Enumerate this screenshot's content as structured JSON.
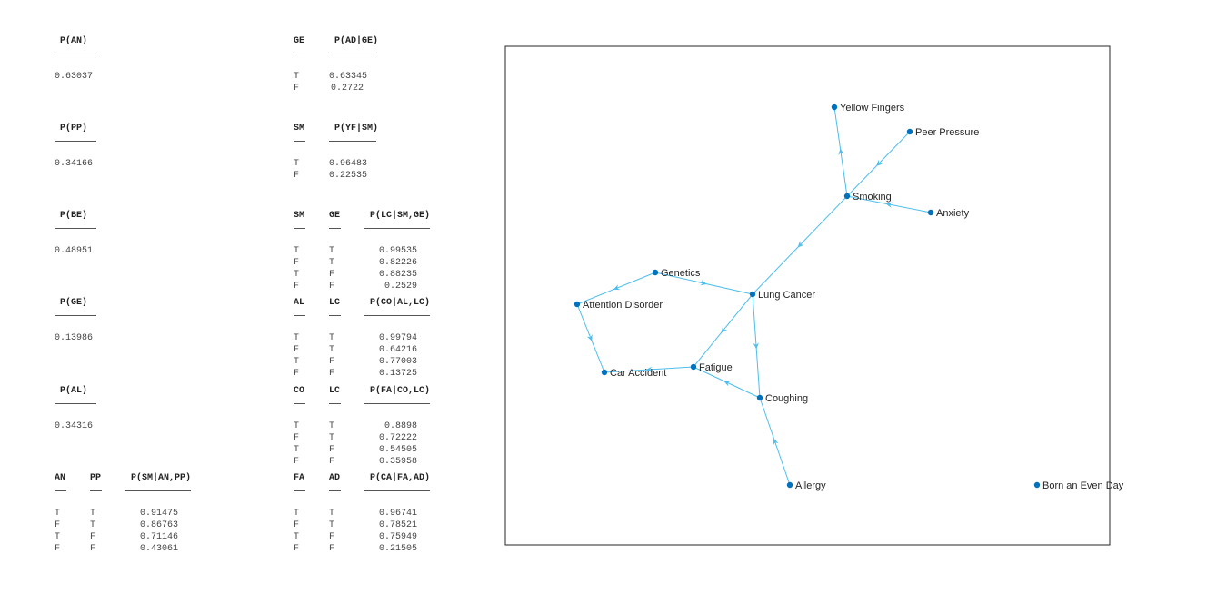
{
  "tables": [
    {
      "id": "t-an",
      "headers": [
        "P(AN)"
      ],
      "rows": [
        [
          "0.63037"
        ]
      ]
    },
    {
      "id": "t-adge",
      "headers": [
        "GE",
        "P(AD|GE)"
      ],
      "rows": [
        [
          "T",
          "0.63345"
        ],
        [
          "F",
          "0.2722"
        ]
      ]
    },
    {
      "id": "t-pp",
      "headers": [
        "P(PP)"
      ],
      "rows": [
        [
          "0.34166"
        ]
      ]
    },
    {
      "id": "t-yfsm",
      "headers": [
        "SM",
        "P(YF|SM)"
      ],
      "rows": [
        [
          "T",
          "0.96483"
        ],
        [
          "F",
          "0.22535"
        ]
      ]
    },
    {
      "id": "t-be",
      "headers": [
        "P(BE)"
      ],
      "rows": [
        [
          "0.48951"
        ]
      ]
    },
    {
      "id": "t-lc",
      "headers": [
        "SM",
        "GE",
        "P(LC|SM,GE)"
      ],
      "rows": [
        [
          "T",
          "T",
          "0.99535"
        ],
        [
          "F",
          "T",
          "0.82226"
        ],
        [
          "T",
          "F",
          "0.88235"
        ],
        [
          "F",
          "F",
          "0.2529"
        ]
      ]
    },
    {
      "id": "t-ge",
      "headers": [
        "P(GE)"
      ],
      "rows": [
        [
          "0.13986"
        ]
      ]
    },
    {
      "id": "t-co",
      "headers": [
        "AL",
        "LC",
        "P(CO|AL,LC)"
      ],
      "rows": [
        [
          "T",
          "T",
          "0.99794"
        ],
        [
          "F",
          "T",
          "0.64216"
        ],
        [
          "T",
          "F",
          "0.77003"
        ],
        [
          "F",
          "F",
          "0.13725"
        ]
      ]
    },
    {
      "id": "t-al",
      "headers": [
        "P(AL)"
      ],
      "rows": [
        [
          "0.34316"
        ]
      ]
    },
    {
      "id": "t-fa",
      "headers": [
        "CO",
        "LC",
        "P(FA|CO,LC)"
      ],
      "rows": [
        [
          "T",
          "T",
          "0.8898"
        ],
        [
          "F",
          "T",
          "0.72222"
        ],
        [
          "T",
          "F",
          "0.54505"
        ],
        [
          "F",
          "F",
          "0.35958"
        ]
      ]
    },
    {
      "id": "t-sm",
      "headers": [
        "AN",
        "PP",
        "P(SM|AN,PP)"
      ],
      "rows": [
        [
          "T",
          "T",
          "0.91475"
        ],
        [
          "F",
          "T",
          "0.86763"
        ],
        [
          "T",
          "F",
          "0.71146"
        ],
        [
          "F",
          "F",
          "0.43061"
        ]
      ]
    },
    {
      "id": "t-ca",
      "headers": [
        "FA",
        "AD",
        "P(CA|FA,AD)"
      ],
      "rows": [
        [
          "T",
          "T",
          "0.96741"
        ],
        [
          "F",
          "T",
          "0.78521"
        ],
        [
          "T",
          "F",
          "0.75949"
        ],
        [
          "F",
          "F",
          "0.21505"
        ]
      ]
    }
  ],
  "graph": {
    "colors": {
      "node": "#0072BD",
      "edge": "#4DBEEE",
      "frame": "#262626"
    },
    "nodes": [
      {
        "id": "YF",
        "label": "Yellow Fingers"
      },
      {
        "id": "PP",
        "label": "Peer Pressure"
      },
      {
        "id": "SM",
        "label": "Smoking"
      },
      {
        "id": "AN",
        "label": "Anxiety"
      },
      {
        "id": "GE",
        "label": "Genetics"
      },
      {
        "id": "LC",
        "label": "Lung Cancer"
      },
      {
        "id": "AD",
        "label": "Attention Disorder"
      },
      {
        "id": "FA",
        "label": "Fatigue"
      },
      {
        "id": "CA",
        "label": "Car Accident"
      },
      {
        "id": "CO",
        "label": "Coughing"
      },
      {
        "id": "AL",
        "label": "Allergy"
      },
      {
        "id": "BE",
        "label": "Born an Even Day"
      }
    ],
    "edges": [
      [
        "SM",
        "YF"
      ],
      [
        "PP",
        "SM"
      ],
      [
        "AN",
        "SM"
      ],
      [
        "SM",
        "LC"
      ],
      [
        "GE",
        "LC"
      ],
      [
        "GE",
        "AD"
      ],
      [
        "AD",
        "CA"
      ],
      [
        "LC",
        "FA"
      ],
      [
        "LC",
        "CO"
      ],
      [
        "FA",
        "CA"
      ],
      [
        "CO",
        "FA"
      ],
      [
        "AL",
        "CO"
      ]
    ]
  }
}
